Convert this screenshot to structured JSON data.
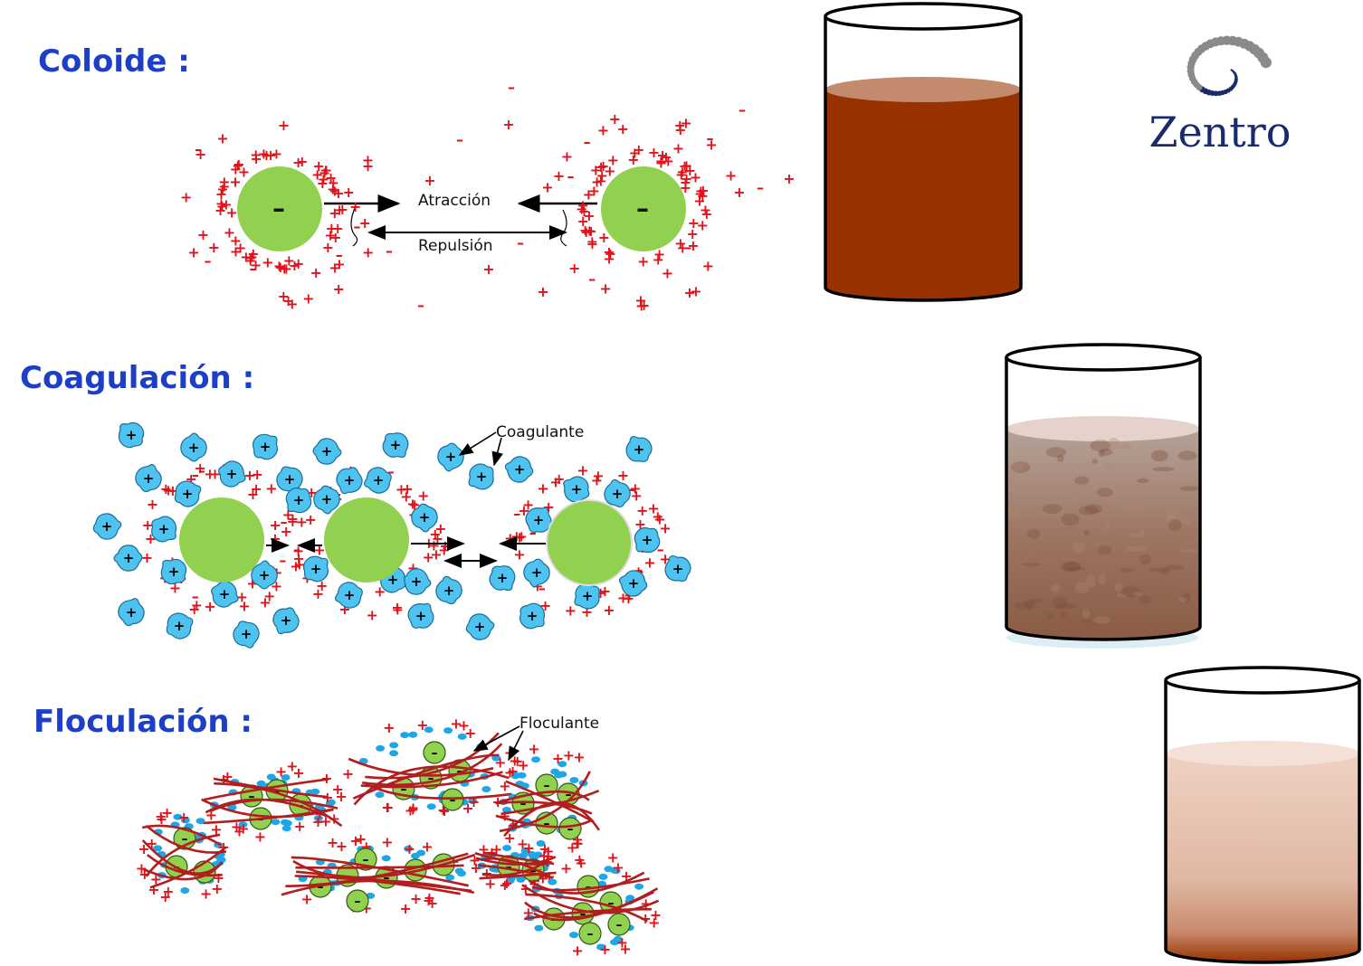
{
  "sections": {
    "coloide": "Coloide :",
    "coagulacion": "Coagulación :",
    "floculacion": "Floculación :"
  },
  "labels": {
    "atraccion": "Atracción",
    "repulsion": "Repulsión",
    "coagulante": "Coagulante",
    "floculante": "Floculante"
  },
  "symbols": {
    "negative": "–",
    "positive": "+"
  },
  "logo": {
    "text": "Zentro"
  },
  "colors": {
    "title": "#1d3fc8",
    "particle": "#92d050",
    "ion": "#e0121a",
    "coagulant": "#4fc3ef",
    "flocculant": "#b21e1e",
    "beaker1": "#983200",
    "beaker2": "#9a6b52",
    "beaker3": "#e8c3b2",
    "logo": "#1a2b6d"
  }
}
